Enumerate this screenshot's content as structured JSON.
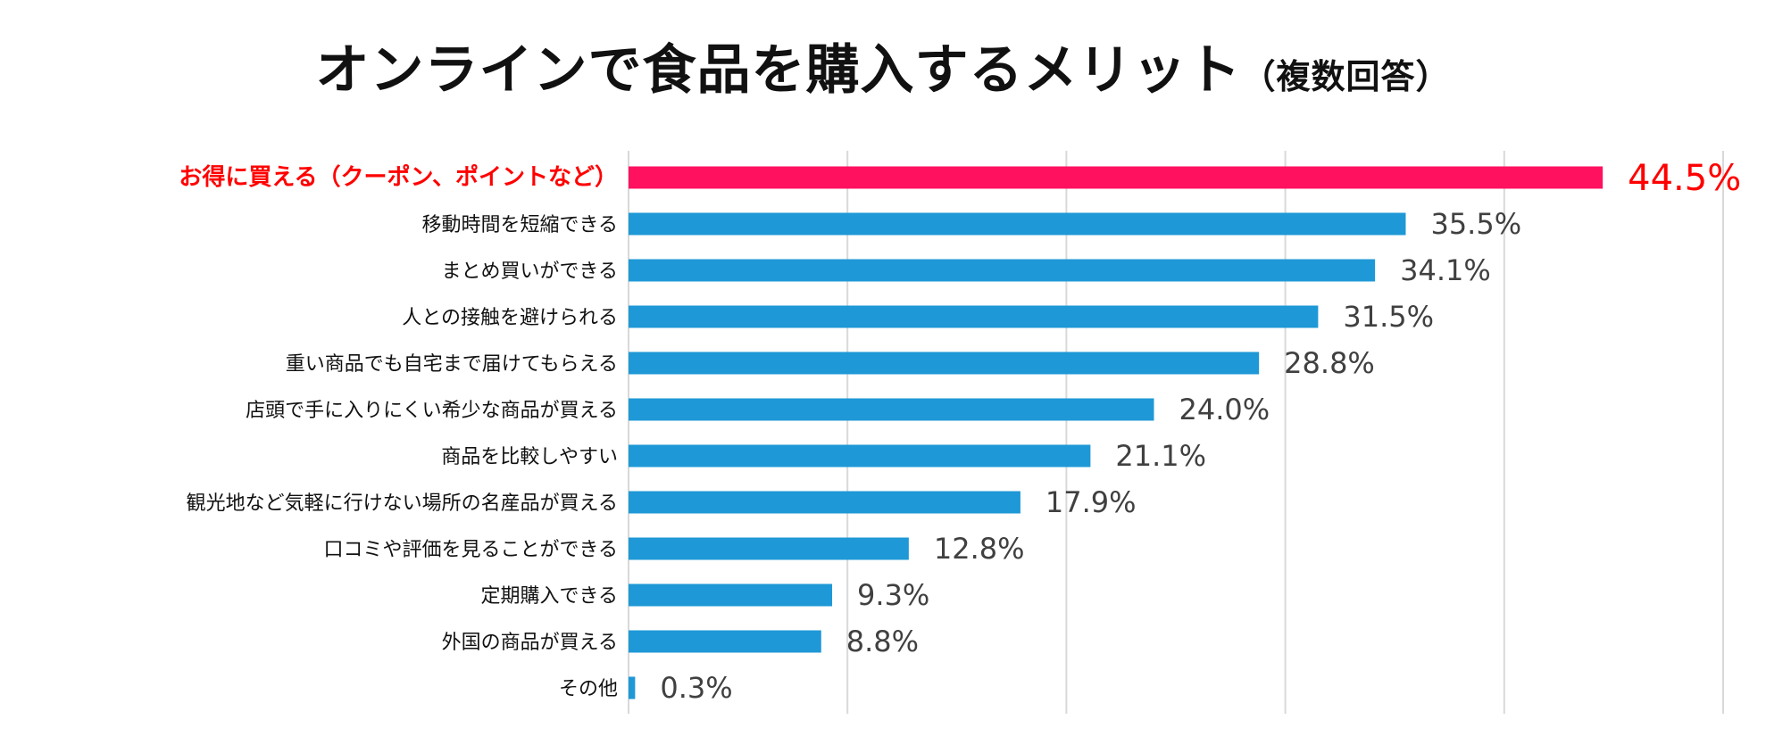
{
  "chart_data": {
    "type": "bar",
    "orientation": "horizontal",
    "title": "オンラインで食品を購入するメリット",
    "subtitle": "（複数回答）",
    "categories": [
      "お得に買える（クーポン、ポイントなど）",
      "移動時間を短縮できる",
      "まとめ買いができる",
      "人との接触を避けられる",
      "重い商品でも自宅まで届けてもらえる",
      "店頭で手に入りにくい希少な商品が買える",
      "商品を比較しやすい",
      "観光地など気軽に行けない場所の名産品が買える",
      "口コミや評価を見ることができる",
      "定期購入できる",
      "外国の商品が買える",
      "その他"
    ],
    "values": [
      44.5,
      35.5,
      34.1,
      31.5,
      28.8,
      24.0,
      21.1,
      17.9,
      12.8,
      9.3,
      8.8,
      0.3
    ],
    "data_labels": [
      "44.5%",
      "35.5%",
      "34.1%",
      "31.5%",
      "28.8%",
      "24.0%",
      "21.1%",
      "17.9%",
      "12.8%",
      "9.3%",
      "8.8%",
      "0.3%"
    ],
    "xlim": [
      0,
      50
    ],
    "grid": true,
    "highlight_index": 0,
    "colors": {
      "bar": "#1E98D6",
      "highlight_bar": "#FF1160",
      "highlight_text": "#FF0000",
      "label": "#111111",
      "value": "#404040",
      "grid": "#D9D9D9"
    }
  }
}
